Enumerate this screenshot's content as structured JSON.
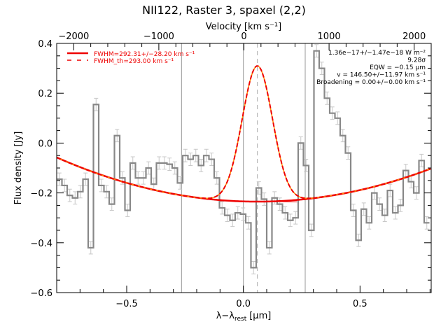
{
  "chart_data": {
    "type": "line",
    "title": "NII122, Raster 3, spaxel (2,2)",
    "xlabel": "λ−λrest [µm]",
    "xlabel_main": "λ−λ",
    "xlabel_sub": "rest",
    "xlabel_unit": "[µm]",
    "ylabel": "Flux density [Jy]",
    "top_xlabel": "Velocity [km s⁻¹]",
    "xlim": [
      -0.8,
      0.805
    ],
    "ylim": [
      -0.6,
      0.4
    ],
    "top_xlim": [
      -2200,
      2200
    ],
    "x_ticks": [
      {
        "v": -0.5,
        "label": "−0.5"
      },
      {
        "v": 0.0,
        "label": "0.0"
      },
      {
        "v": 0.5,
        "label": "0.5"
      }
    ],
    "y_ticks": [
      {
        "v": 0.4,
        "label": "0.4"
      },
      {
        "v": 0.2,
        "label": "0.2"
      },
      {
        "v": 0.0,
        "label": "0.0"
      },
      {
        "v": -0.2,
        "label": "−0.2"
      },
      {
        "v": -0.4,
        "label": "−0.4"
      },
      {
        "v": -0.6,
        "label": "−0.6"
      }
    ],
    "top_ticks": [
      {
        "v": -2000,
        "label": "−2000"
      },
      {
        "v": -1000,
        "label": "−1000"
      },
      {
        "v": 0,
        "label": "0"
      },
      {
        "v": 1000,
        "label": "1000"
      },
      {
        "v": 2000,
        "label": "2000"
      }
    ],
    "vertical_lines": [
      -0.265,
      0.0,
      0.265
    ],
    "dashed_line": 0.06,
    "legend": [
      {
        "style": "solid",
        "label": "FWHM=292.31+/−28.20 km s⁻¹"
      },
      {
        "style": "dashed",
        "label": "FWHM_th=293.00 km s⁻¹"
      }
    ],
    "annotations": [
      "1.36e−17+/−1.47e−18 W m⁻²",
      "9.28σ",
      "EQW = −0.15 µm",
      "v = 146.50+/−11.97 km s⁻¹",
      "Broadening = 0.00+/−0.00 km s⁻¹"
    ],
    "spectrum": {
      "bin_width": 0.0225,
      "x_start": -0.8,
      "flux": [
        -0.145,
        -0.17,
        -0.21,
        -0.22,
        -0.195,
        -0.145,
        -0.42,
        0.155,
        -0.17,
        -0.195,
        -0.245,
        0.03,
        -0.14,
        -0.27,
        -0.08,
        -0.14,
        -0.14,
        -0.1,
        -0.165,
        -0.08,
        -0.08,
        -0.085,
        -0.1,
        -0.16,
        -0.05,
        -0.065,
        -0.05,
        -0.09,
        -0.05,
        -0.065,
        -0.14,
        -0.26,
        -0.29,
        -0.31,
        -0.28,
        -0.285,
        -0.32,
        -0.5,
        -0.18,
        -0.225,
        -0.42,
        -0.22,
        -0.245,
        -0.28,
        -0.31,
        -0.3,
        0.0,
        -0.09,
        -0.35,
        0.37,
        0.3,
        0.18,
        0.12,
        0.1,
        0.03,
        -0.04,
        -0.27,
        -0.39,
        -0.265,
        -0.32,
        -0.2,
        -0.245,
        -0.29,
        -0.19,
        -0.28,
        -0.25,
        -0.11,
        -0.155,
        -0.2,
        -0.07,
        -0.32
      ],
      "errors": 0.025
    },
    "continuum_fit": {
      "x0": 0.06,
      "y0": -0.235,
      "curv": 0.24
    },
    "line_fit": {
      "center": 0.06,
      "peak": 0.31,
      "sigma": 0.065,
      "baseline": -0.235
    }
  }
}
